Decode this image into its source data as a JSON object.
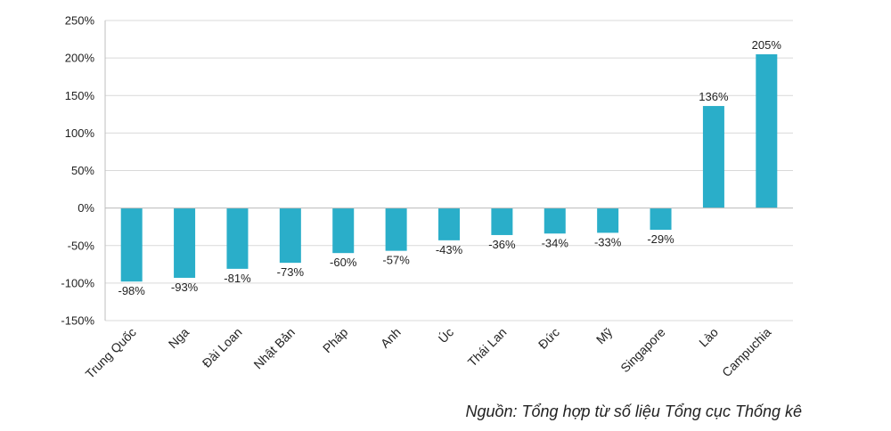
{
  "chart_data": {
    "type": "bar",
    "categories": [
      "Trung Quốc",
      "Nga",
      "Đài Loan",
      "Nhật Bản",
      "Pháp",
      "Anh",
      "Úc",
      "Thái Lan",
      "Đức",
      "Mỹ",
      "Singapore",
      "Lào",
      "Campuchia"
    ],
    "values": [
      -98,
      -93,
      -81,
      -73,
      -60,
      -57,
      -43,
      -36,
      -34,
      -33,
      -29,
      136,
      205
    ],
    "value_labels": [
      "-98%",
      "-93%",
      "-81%",
      "-73%",
      "-60%",
      "-57%",
      "-43%",
      "-36%",
      "-34%",
      "-33%",
      "-29%",
      "136%",
      "205%"
    ],
    "yticks": [
      250,
      200,
      150,
      100,
      50,
      0,
      -50,
      -100,
      -150
    ],
    "ytick_labels": [
      "250%",
      "200%",
      "150%",
      "100%",
      "50%",
      "0%",
      "-50%",
      "-100%",
      "-150%"
    ],
    "ylim": [
      -150,
      250
    ],
    "grid": true,
    "bar_color": "#2aaec9",
    "title": "",
    "xlabel": "",
    "ylabel": ""
  },
  "source_note": "Nguồn: Tổng hợp từ số liệu Tổng cục Thống kê"
}
